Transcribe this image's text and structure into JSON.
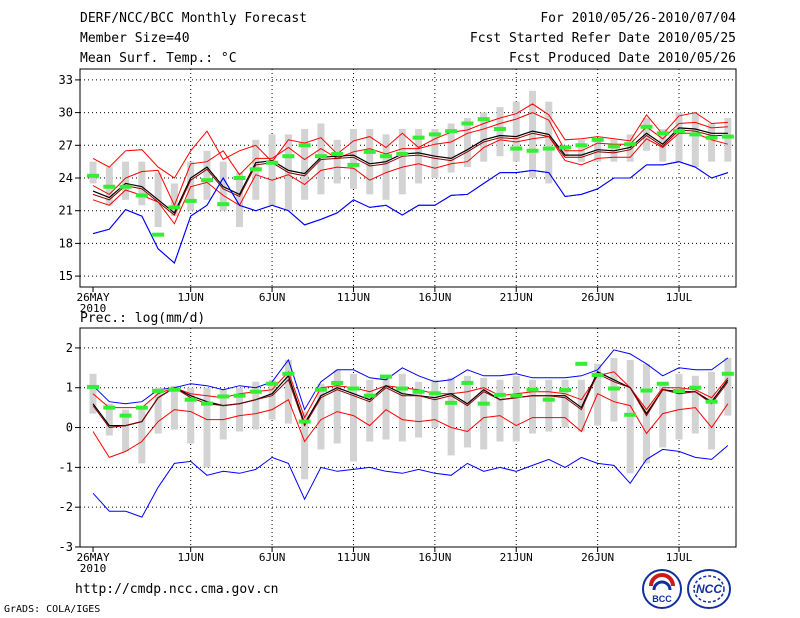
{
  "header": {
    "title": "DERF/NCC/BCC Monthly Forecast",
    "member_size": "Member Size=40",
    "variable": "Mean Surf. Temp.: °C",
    "period": "For 2010/05/26-2010/07/04",
    "refer_date": "Fcst Started Refer Date 2010/05/25",
    "produced_date": "Fcst Produced Date 2010/05/26"
  },
  "prec_label": "Prec.: log(mm/d)",
  "footer": {
    "url": "http://cmdp.ncc.cma.gov.cn",
    "credit": "GrADS: COLA/IGES"
  },
  "logos": {
    "bcc": "BCC",
    "ncc": "NCC"
  },
  "colors": {
    "envelope": "#0000ff",
    "spread": "#ff0000",
    "mean": "#000000",
    "median": "#8b0000",
    "bar": "#d3d3d3",
    "observed": "#33ee33",
    "grid": "#000000"
  },
  "chart_data": [
    {
      "type": "line",
      "title": "Mean Surf. Temp.: °C",
      "x_tick_labels": [
        "26MAY",
        "1JUN",
        "6JUN",
        "11JUN",
        "16JUN",
        "21JUN",
        "26JUN",
        "1JUL"
      ],
      "x_tick_days": [
        0,
        6,
        11,
        16,
        21,
        26,
        31,
        36
      ],
      "x_year_label": "2010",
      "xlim": [
        -0.8,
        39.5
      ],
      "ylim": [
        14,
        34
      ],
      "yticks": [
        15,
        18,
        21,
        24,
        27,
        30,
        33
      ],
      "days": 40,
      "series": [
        {
          "name": "max",
          "values": [
            18.9,
            19.3,
            21.1,
            20.5,
            17.5,
            16.2,
            20.5,
            21.5,
            24.0,
            21.5,
            21.0,
            21.5,
            21.0,
            19.7,
            20.2,
            20.8,
            22.0,
            21.3,
            21.5,
            20.6,
            21.5,
            21.5,
            22.4,
            22.5,
            23.5,
            24.5,
            24.5,
            24.7,
            24.5,
            22.3,
            22.5,
            23.0,
            24.0,
            24.0,
            25.2,
            25.2,
            25.5,
            25.0,
            24.0,
            24.5
          ]
        },
        {
          "name": "p90",
          "values": [
            25.8,
            25.0,
            26.5,
            26.6,
            25.0,
            24.0,
            26.5,
            28.3,
            25.7,
            26.5,
            27.0,
            25.5,
            27.5,
            27.2,
            27.7,
            26.2,
            27.4,
            27.8,
            26.8,
            28.1,
            26.8,
            27.6,
            28.2,
            28.4,
            29.0,
            29.5,
            29.9,
            30.8,
            29.8,
            27.5,
            27.6,
            27.8,
            27.6,
            27.4,
            29.8,
            28.0,
            29.7,
            30.0,
            29.0,
            29.1
          ]
        },
        {
          "name": "p70",
          "values": [
            23.3,
            22.5,
            24.0,
            24.6,
            24.7,
            21.5,
            25.3,
            25.5,
            26.5,
            24.3,
            25.8,
            25.8,
            26.8,
            25.7,
            26.7,
            25.8,
            26.4,
            26.7,
            26.2,
            26.7,
            26.7,
            27.1,
            27.3,
            28.1,
            28.5,
            29.0,
            29.4,
            30.0,
            29.3,
            26.5,
            26.5,
            27.2,
            27.1,
            27.1,
            28.7,
            27.6,
            29.0,
            29.1,
            28.6,
            28.7
          ]
        },
        {
          "name": "mean",
          "values": [
            22.8,
            22.2,
            23.5,
            23.2,
            22.0,
            20.8,
            24.0,
            25.0,
            23.2,
            22.5,
            25.4,
            25.6,
            24.7,
            24.4,
            25.9,
            26.0,
            26.1,
            25.3,
            25.5,
            26.2,
            26.3,
            26.0,
            25.8,
            26.6,
            27.5,
            27.9,
            27.8,
            28.3,
            28.0,
            26.1,
            26.1,
            26.6,
            26.5,
            26.8,
            28.1,
            27.1,
            28.6,
            28.5,
            28.1,
            28.1
          ]
        },
        {
          "name": "median",
          "values": [
            22.5,
            22.0,
            23.3,
            23.0,
            21.8,
            20.6,
            23.8,
            24.8,
            23.0,
            22.3,
            25.2,
            25.4,
            24.5,
            24.2,
            25.7,
            25.8,
            25.9,
            25.1,
            25.3,
            26.0,
            26.1,
            25.8,
            25.6,
            26.4,
            27.3,
            27.7,
            27.6,
            28.1,
            27.8,
            25.9,
            25.9,
            26.4,
            26.3,
            26.6,
            27.9,
            26.9,
            28.4,
            28.3,
            27.9,
            27.9
          ]
        },
        {
          "name": "p30",
          "values": [
            22.0,
            21.5,
            22.9,
            22.4,
            21.8,
            19.8,
            23.2,
            23.6,
            22.4,
            21.5,
            24.3,
            23.8,
            24.3,
            23.4,
            24.7,
            25.0,
            24.9,
            23.8,
            24.5,
            25.0,
            25.3,
            24.9,
            25.3,
            25.5,
            26.8,
            27.5,
            27.3,
            27.6,
            27.8,
            25.6,
            25.2,
            25.8,
            25.9,
            25.9,
            27.6,
            26.8,
            28.1,
            28.1,
            27.5,
            27.1
          ]
        },
        {
          "name": "min",
          "values": [
            18.9,
            19.3,
            21.1,
            20.5,
            17.5,
            16.2,
            20.5,
            21.5,
            24.0,
            21.5,
            21.0,
            21.5,
            21.0,
            19.7,
            20.2,
            20.8,
            22.0,
            21.3,
            21.5,
            20.6,
            21.5,
            21.5,
            22.4,
            22.5,
            23.5,
            24.5,
            24.5,
            24.7,
            24.5,
            22.3,
            22.5,
            23.0,
            24.0,
            24.0,
            25.2,
            25.2,
            25.5,
            25.0,
            24.0,
            24.5
          ]
        }
      ],
      "bars": {
        "low": [
          23.5,
          21.5,
          22.0,
          21.5,
          19.5,
          20.5,
          21.0,
          22.0,
          21.0,
          19.5,
          22.0,
          21.5,
          21.0,
          22.0,
          22.5,
          23.5,
          23.0,
          22.5,
          22.0,
          22.5,
          23.5,
          24.0,
          24.5,
          25.0,
          25.5,
          26.0,
          25.5,
          24.0,
          23.5,
          26.0,
          25.5,
          25.5,
          25.5,
          25.5,
          26.5,
          25.5,
          25.5,
          25.0,
          25.5,
          25.5
        ],
        "high": [
          25.5,
          25.0,
          25.5,
          25.5,
          24.5,
          23.5,
          25.5,
          26.5,
          25.5,
          24.5,
          27.5,
          28.0,
          28.0,
          28.5,
          29.0,
          27.5,
          28.5,
          28.5,
          28.0,
          28.5,
          28.5,
          28.5,
          29.0,
          29.5,
          30.0,
          30.5,
          31.0,
          32.0,
          31.0,
          27.0,
          27.5,
          27.5,
          27.5,
          28.0,
          29.5,
          28.5,
          30.0,
          30.0,
          29.0,
          29.5
        ]
      },
      "observed": [
        24.2,
        23.2,
        23.2,
        22.4,
        18.8,
        21.3,
        21.9,
        23.8,
        21.6,
        24.0,
        24.8,
        25.4,
        26.0,
        27.0,
        26.0,
        26.2,
        25.2,
        26.4,
        26.0,
        26.2,
        27.7,
        28.0,
        28.3,
        29.0,
        29.4,
        28.5,
        26.7,
        26.5,
        26.7,
        26.8,
        27.0,
        27.5,
        26.9,
        27.1,
        28.7,
        28.1,
        28.3,
        28.0,
        27.7,
        27.8
      ]
    },
    {
      "type": "line",
      "title": "Prec.: log(mm/d)",
      "x_tick_labels": [
        "26MAY",
        "1JUN",
        "6JUN",
        "11JUN",
        "16JUN",
        "21JUN",
        "26JUN",
        "1JUL"
      ],
      "x_tick_days": [
        0,
        6,
        11,
        16,
        21,
        26,
        31,
        36
      ],
      "x_year_label": "2010",
      "xlim": [
        -0.8,
        39.5
      ],
      "ylim": [
        -3,
        2.5
      ],
      "yticks": [
        -3,
        -2,
        -1,
        0,
        1,
        2
      ],
      "days": 40,
      "series": [
        {
          "name": "max",
          "values": [
            1.05,
            0.65,
            0.6,
            0.65,
            0.95,
            1.0,
            1.1,
            1.05,
            0.95,
            1.05,
            1.0,
            1.15,
            1.7,
            0.45,
            1.15,
            1.45,
            1.45,
            1.25,
            1.2,
            1.5,
            1.3,
            1.15,
            1.2,
            1.45,
            1.3,
            1.3,
            1.35,
            1.25,
            1.25,
            1.25,
            1.3,
            1.45,
            1.95,
            1.85,
            1.6,
            1.3,
            1.5,
            1.45,
            1.45,
            1.75
          ]
        },
        {
          "name": "p90",
          "values": [
            0.85,
            0.5,
            0.5,
            0.5,
            0.85,
            1.0,
            0.85,
            0.8,
            0.75,
            0.85,
            0.9,
            0.95,
            1.4,
            0.25,
            1.0,
            1.05,
            1.0,
            0.9,
            1.05,
            1.0,
            0.95,
            0.85,
            0.85,
            0.9,
            1.0,
            0.8,
            0.85,
            0.9,
            0.9,
            0.85,
            0.7,
            1.3,
            1.4,
            1.0,
            0.45,
            1.0,
            1.0,
            0.95,
            0.75,
            1.25
          ]
        },
        {
          "name": "mean",
          "values": [
            0.6,
            0.05,
            0.05,
            0.15,
            0.75,
            1.0,
            0.8,
            0.65,
            0.55,
            0.6,
            0.7,
            0.85,
            1.3,
            0.1,
            0.8,
            1.0,
            0.85,
            0.7,
            1.05,
            0.85,
            0.8,
            0.75,
            0.85,
            0.6,
            0.95,
            0.7,
            0.75,
            0.8,
            0.8,
            0.8,
            0.5,
            1.4,
            1.2,
            1.0,
            0.35,
            0.95,
            0.9,
            0.9,
            0.65,
            1.2
          ]
        },
        {
          "name": "median",
          "values": [
            0.55,
            0.0,
            0.05,
            0.15,
            0.75,
            1.0,
            0.75,
            0.6,
            0.55,
            0.6,
            0.7,
            0.8,
            1.2,
            0.05,
            0.75,
            0.95,
            0.8,
            0.65,
            1.0,
            0.8,
            0.8,
            0.7,
            0.8,
            0.55,
            0.9,
            0.7,
            0.75,
            0.8,
            0.8,
            0.75,
            0.45,
            1.35,
            1.15,
            1.0,
            0.3,
            0.95,
            0.85,
            0.9,
            0.6,
            1.15
          ]
        },
        {
          "name": "p30",
          "values": [
            -0.1,
            -0.75,
            -0.6,
            -0.35,
            0.15,
            0.45,
            0.4,
            0.2,
            0.2,
            0.3,
            0.35,
            0.45,
            0.7,
            -0.35,
            0.2,
            0.4,
            0.3,
            0.05,
            0.45,
            0.2,
            0.15,
            0.2,
            0.0,
            -0.1,
            0.25,
            0.3,
            0.05,
            0.25,
            0.25,
            0.25,
            -0.1,
            0.85,
            0.65,
            0.55,
            -0.15,
            0.35,
            0.45,
            0.5,
            0.0,
            0.6
          ]
        },
        {
          "name": "min",
          "values": [
            -1.65,
            -2.1,
            -2.1,
            -2.25,
            -1.5,
            -0.9,
            -0.85,
            -1.2,
            -1.1,
            -1.15,
            -1.05,
            -0.75,
            -0.9,
            -1.8,
            -1.0,
            -1.1,
            -1.05,
            -1.0,
            -1.1,
            -1.15,
            -1.05,
            -1.15,
            -1.2,
            -0.9,
            -1.1,
            -1.0,
            -1.1,
            -0.95,
            -0.8,
            -1.0,
            -0.75,
            -0.9,
            -0.95,
            -1.4,
            -0.8,
            -0.55,
            -0.6,
            -0.75,
            -0.8,
            -0.45
          ]
        }
      ],
      "bars": {
        "low": [
          0.35,
          -0.2,
          -0.6,
          -0.9,
          -0.15,
          -0.05,
          -0.4,
          -1.0,
          -0.3,
          -0.1,
          -0.05,
          0.2,
          0.1,
          -1.3,
          -0.55,
          -0.4,
          -0.85,
          -0.35,
          -0.3,
          -0.35,
          -0.25,
          0.0,
          -0.7,
          -0.5,
          -0.55,
          -0.35,
          -0.35,
          -0.15,
          -0.1,
          0.0,
          -0.1,
          0.05,
          0.15,
          -1.15,
          -0.9,
          -0.5,
          -0.3,
          -0.15,
          -0.55,
          0.3
        ],
        "high": [
          1.35,
          0.6,
          0.45,
          0.5,
          1.0,
          1.05,
          1.0,
          1.0,
          0.95,
          1.0,
          1.15,
          1.2,
          1.7,
          0.4,
          1.1,
          1.45,
          1.35,
          1.2,
          1.25,
          1.35,
          1.15,
          1.2,
          1.25,
          1.3,
          1.25,
          1.2,
          1.3,
          1.2,
          1.2,
          1.2,
          1.2,
          1.6,
          1.75,
          1.7,
          1.6,
          1.15,
          1.35,
          1.3,
          1.4,
          1.75
        ]
      },
      "observed": [
        1.02,
        0.5,
        0.3,
        0.5,
        0.92,
        0.95,
        0.7,
        0.6,
        0.78,
        0.8,
        0.9,
        1.1,
        1.35,
        0.15,
        0.95,
        1.12,
        0.98,
        0.8,
        1.28,
        0.98,
        0.9,
        0.86,
        0.62,
        1.12,
        0.6,
        0.82,
        0.8,
        0.95,
        0.7,
        0.94,
        1.6,
        1.32,
        0.98,
        0.32,
        0.93,
        1.1,
        0.92,
        1.0,
        0.65,
        1.35
      ]
    }
  ]
}
